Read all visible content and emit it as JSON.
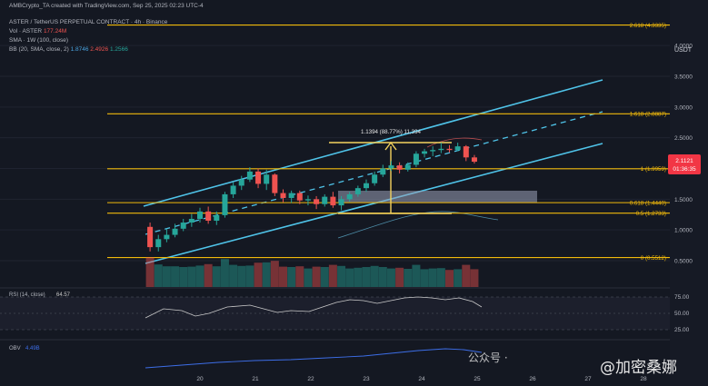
{
  "header": {
    "creator_line": "AMBCrypto_TA created with TradingView.com, Sep 25, 2025 02:23 UTC-4",
    "symbol_line": "ASTER / TetherUS PERPETUAL CONTRACT · 4h · Binance",
    "vol_label": "Vol · ASTER",
    "vol_value": "177.24M",
    "sma_label": "SMA · 1W (100, close)",
    "bb_label": "BB (20, SMA, close, 2)",
    "bb_values": [
      "1.8746",
      "2.4926",
      "1.2566"
    ]
  },
  "currency_label": "USDT",
  "colors": {
    "background": "#161a25",
    "up": "#26a69a",
    "down": "#ef5350",
    "channel": "#4fc3e8",
    "fib": "#f0b90b",
    "measure": "#f4d35e",
    "price_tag": "#f23645",
    "rsi": "#c9c9c9",
    "obv": "#3d6ee8"
  },
  "price_tag": {
    "price": "2.1121",
    "countdown": "01:36:35"
  },
  "measure_label": "1.1394 (88.77%) 11,394",
  "rsi": {
    "label": "RSI (14, close)",
    "value": "64.57",
    "ticks": [
      "75.00",
      "50.00",
      "25.00"
    ]
  },
  "obv": {
    "label": "OBV",
    "value": "4.49B"
  },
  "watermark": {
    "brand_text": "公众号 ·",
    "name_text": "@加密桑娜"
  },
  "chart_data": {
    "type": "candlestick",
    "title": "ASTER / TetherUS PERPETUAL CONTRACT · 4h · Binance",
    "x_ticks": [
      "20",
      "21",
      "22",
      "23",
      "24",
      "25",
      "26",
      "27",
      "28"
    ],
    "y_ticks": [
      "4.0000",
      "3.5000",
      "3.0000",
      "2.5000",
      "2.0000",
      "1.5000",
      "1.0000",
      "0.5000"
    ],
    "ylim": [
      0.35,
      4.5
    ],
    "fib_levels": [
      {
        "label": "2.618 (4.3335)",
        "value": 4.3335
      },
      {
        "label": "1.618 (2.8887)",
        "value": 2.8887
      },
      {
        "label": "1 (1.9959)",
        "value": 1.9959
      },
      {
        "label": "0.618 (1.4440)",
        "value": 1.444
      },
      {
        "label": "0.5 (1.2733)",
        "value": 1.2733
      },
      {
        "label": "0 (0.5512)",
        "value": 0.5512
      }
    ],
    "candles": [
      {
        "d": 19.1,
        "o": 1.05,
        "h": 1.12,
        "l": 0.65,
        "c": 0.72
      },
      {
        "d": 19.25,
        "o": 0.72,
        "h": 0.92,
        "l": 0.65,
        "c": 0.85
      },
      {
        "d": 19.4,
        "o": 0.85,
        "h": 1.02,
        "l": 0.8,
        "c": 0.92
      },
      {
        "d": 19.55,
        "o": 0.92,
        "h": 1.1,
        "l": 0.88,
        "c": 1.02
      },
      {
        "d": 19.7,
        "o": 1.02,
        "h": 1.18,
        "l": 0.98,
        "c": 1.12
      },
      {
        "d": 19.85,
        "o": 1.12,
        "h": 1.26,
        "l": 1.05,
        "c": 1.18
      },
      {
        "d": 20.0,
        "o": 1.18,
        "h": 1.36,
        "l": 1.12,
        "c": 1.3
      },
      {
        "d": 20.15,
        "o": 1.3,
        "h": 1.38,
        "l": 1.1,
        "c": 1.15
      },
      {
        "d": 20.3,
        "o": 1.15,
        "h": 1.3,
        "l": 1.08,
        "c": 1.24
      },
      {
        "d": 20.45,
        "o": 1.24,
        "h": 1.62,
        "l": 1.2,
        "c": 1.58
      },
      {
        "d": 20.6,
        "o": 1.58,
        "h": 1.78,
        "l": 1.52,
        "c": 1.72
      },
      {
        "d": 20.75,
        "o": 1.72,
        "h": 1.88,
        "l": 1.65,
        "c": 1.82
      },
      {
        "d": 20.9,
        "o": 1.82,
        "h": 2.02,
        "l": 1.78,
        "c": 1.95
      },
      {
        "d": 21.05,
        "o": 1.95,
        "h": 2.0,
        "l": 1.68,
        "c": 1.75
      },
      {
        "d": 21.2,
        "o": 1.75,
        "h": 1.98,
        "l": 1.65,
        "c": 1.9
      },
      {
        "d": 21.35,
        "o": 1.9,
        "h": 1.92,
        "l": 1.55,
        "c": 1.6
      },
      {
        "d": 21.5,
        "o": 1.6,
        "h": 1.66,
        "l": 1.45,
        "c": 1.52
      },
      {
        "d": 21.65,
        "o": 1.52,
        "h": 1.64,
        "l": 1.44,
        "c": 1.6
      },
      {
        "d": 21.8,
        "o": 1.6,
        "h": 1.64,
        "l": 1.42,
        "c": 1.48
      },
      {
        "d": 21.95,
        "o": 1.48,
        "h": 1.56,
        "l": 1.4,
        "c": 1.5
      },
      {
        "d": 22.1,
        "o": 1.5,
        "h": 1.55,
        "l": 1.34,
        "c": 1.42
      },
      {
        "d": 22.25,
        "o": 1.42,
        "h": 1.58,
        "l": 1.38,
        "c": 1.54
      },
      {
        "d": 22.4,
        "o": 1.54,
        "h": 1.62,
        "l": 1.36,
        "c": 1.4
      },
      {
        "d": 22.55,
        "o": 1.4,
        "h": 1.55,
        "l": 1.32,
        "c": 1.5
      },
      {
        "d": 22.7,
        "o": 1.5,
        "h": 1.62,
        "l": 1.46,
        "c": 1.58
      },
      {
        "d": 22.85,
        "o": 1.58,
        "h": 1.72,
        "l": 1.54,
        "c": 1.68
      },
      {
        "d": 23.0,
        "o": 1.68,
        "h": 1.82,
        "l": 1.62,
        "c": 1.76
      },
      {
        "d": 23.15,
        "o": 1.76,
        "h": 1.95,
        "l": 1.72,
        "c": 1.9
      },
      {
        "d": 23.3,
        "o": 1.9,
        "h": 2.06,
        "l": 1.86,
        "c": 2.0
      },
      {
        "d": 23.45,
        "o": 2.0,
        "h": 2.12,
        "l": 1.96,
        "c": 2.05
      },
      {
        "d": 23.6,
        "o": 2.05,
        "h": 2.1,
        "l": 1.92,
        "c": 1.98
      },
      {
        "d": 23.75,
        "o": 1.98,
        "h": 2.1,
        "l": 1.95,
        "c": 2.06
      },
      {
        "d": 23.9,
        "o": 2.06,
        "h": 2.28,
        "l": 2.02,
        "c": 2.24
      },
      {
        "d": 24.05,
        "o": 2.24,
        "h": 2.32,
        "l": 2.18,
        "c": 2.28
      },
      {
        "d": 24.2,
        "o": 2.28,
        "h": 2.36,
        "l": 2.2,
        "c": 2.3
      },
      {
        "d": 24.35,
        "o": 2.3,
        "h": 2.42,
        "l": 2.25,
        "c": 2.32
      },
      {
        "d": 24.5,
        "o": 2.32,
        "h": 2.38,
        "l": 2.26,
        "c": 2.3
      },
      {
        "d": 24.65,
        "o": 2.3,
        "h": 2.42,
        "l": 2.28,
        "c": 2.36
      },
      {
        "d": 24.8,
        "o": 2.36,
        "h": 2.38,
        "l": 2.12,
        "c": 2.18
      },
      {
        "d": 24.95,
        "o": 2.18,
        "h": 2.22,
        "l": 2.08,
        "c": 2.11
      }
    ]
  }
}
